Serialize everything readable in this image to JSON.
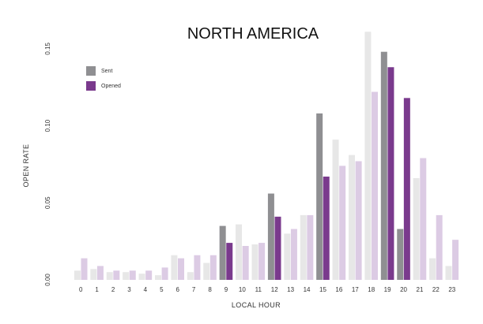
{
  "colors": {
    "sent_highlight": "#8f8f92",
    "sent_muted": "#e7e7e7",
    "opened_highlight": "#7a3a8d",
    "opened_muted": "#dccbe4"
  },
  "chart_data": {
    "type": "bar",
    "title": "NORTH AMERICA",
    "xlabel": "LOCAL HOUR",
    "ylabel": "OPEN RATE",
    "ylim": [
      0,
      0.155
    ],
    "yticks": [
      "0.00",
      "0.05",
      "0.10",
      "0.15"
    ],
    "categories": [
      "0",
      "1",
      "2",
      "3",
      "4",
      "5",
      "6",
      "7",
      "8",
      "9",
      "10",
      "11",
      "12",
      "13",
      "14",
      "15",
      "16",
      "17",
      "18",
      "19",
      "20",
      "21",
      "22",
      "23"
    ],
    "series": [
      {
        "name": "Sent",
        "values": [
          0.006,
          0.007,
          0.005,
          0.005,
          0.004,
          0.003,
          0.016,
          0.005,
          0.011,
          0.035,
          0.036,
          0.023,
          0.056,
          0.03,
          0.042,
          0.108,
          0.091,
          0.081,
          0.161,
          0.148,
          0.033,
          0.066,
          0.014,
          0.009
        ]
      },
      {
        "name": "Opened",
        "values": [
          0.014,
          0.009,
          0.006,
          0.006,
          0.006,
          0.008,
          0.014,
          0.016,
          0.016,
          0.024,
          0.022,
          0.024,
          0.041,
          0.033,
          0.042,
          0.067,
          0.074,
          0.077,
          0.122,
          0.138,
          0.118,
          0.079,
          0.042,
          0.026
        ]
      }
    ],
    "highlighted_hours": [
      "9",
      "12",
      "15",
      "19",
      "20"
    ],
    "legend": {
      "placement": "top-left",
      "items": [
        "Sent",
        "Opened"
      ]
    },
    "grid": false
  }
}
